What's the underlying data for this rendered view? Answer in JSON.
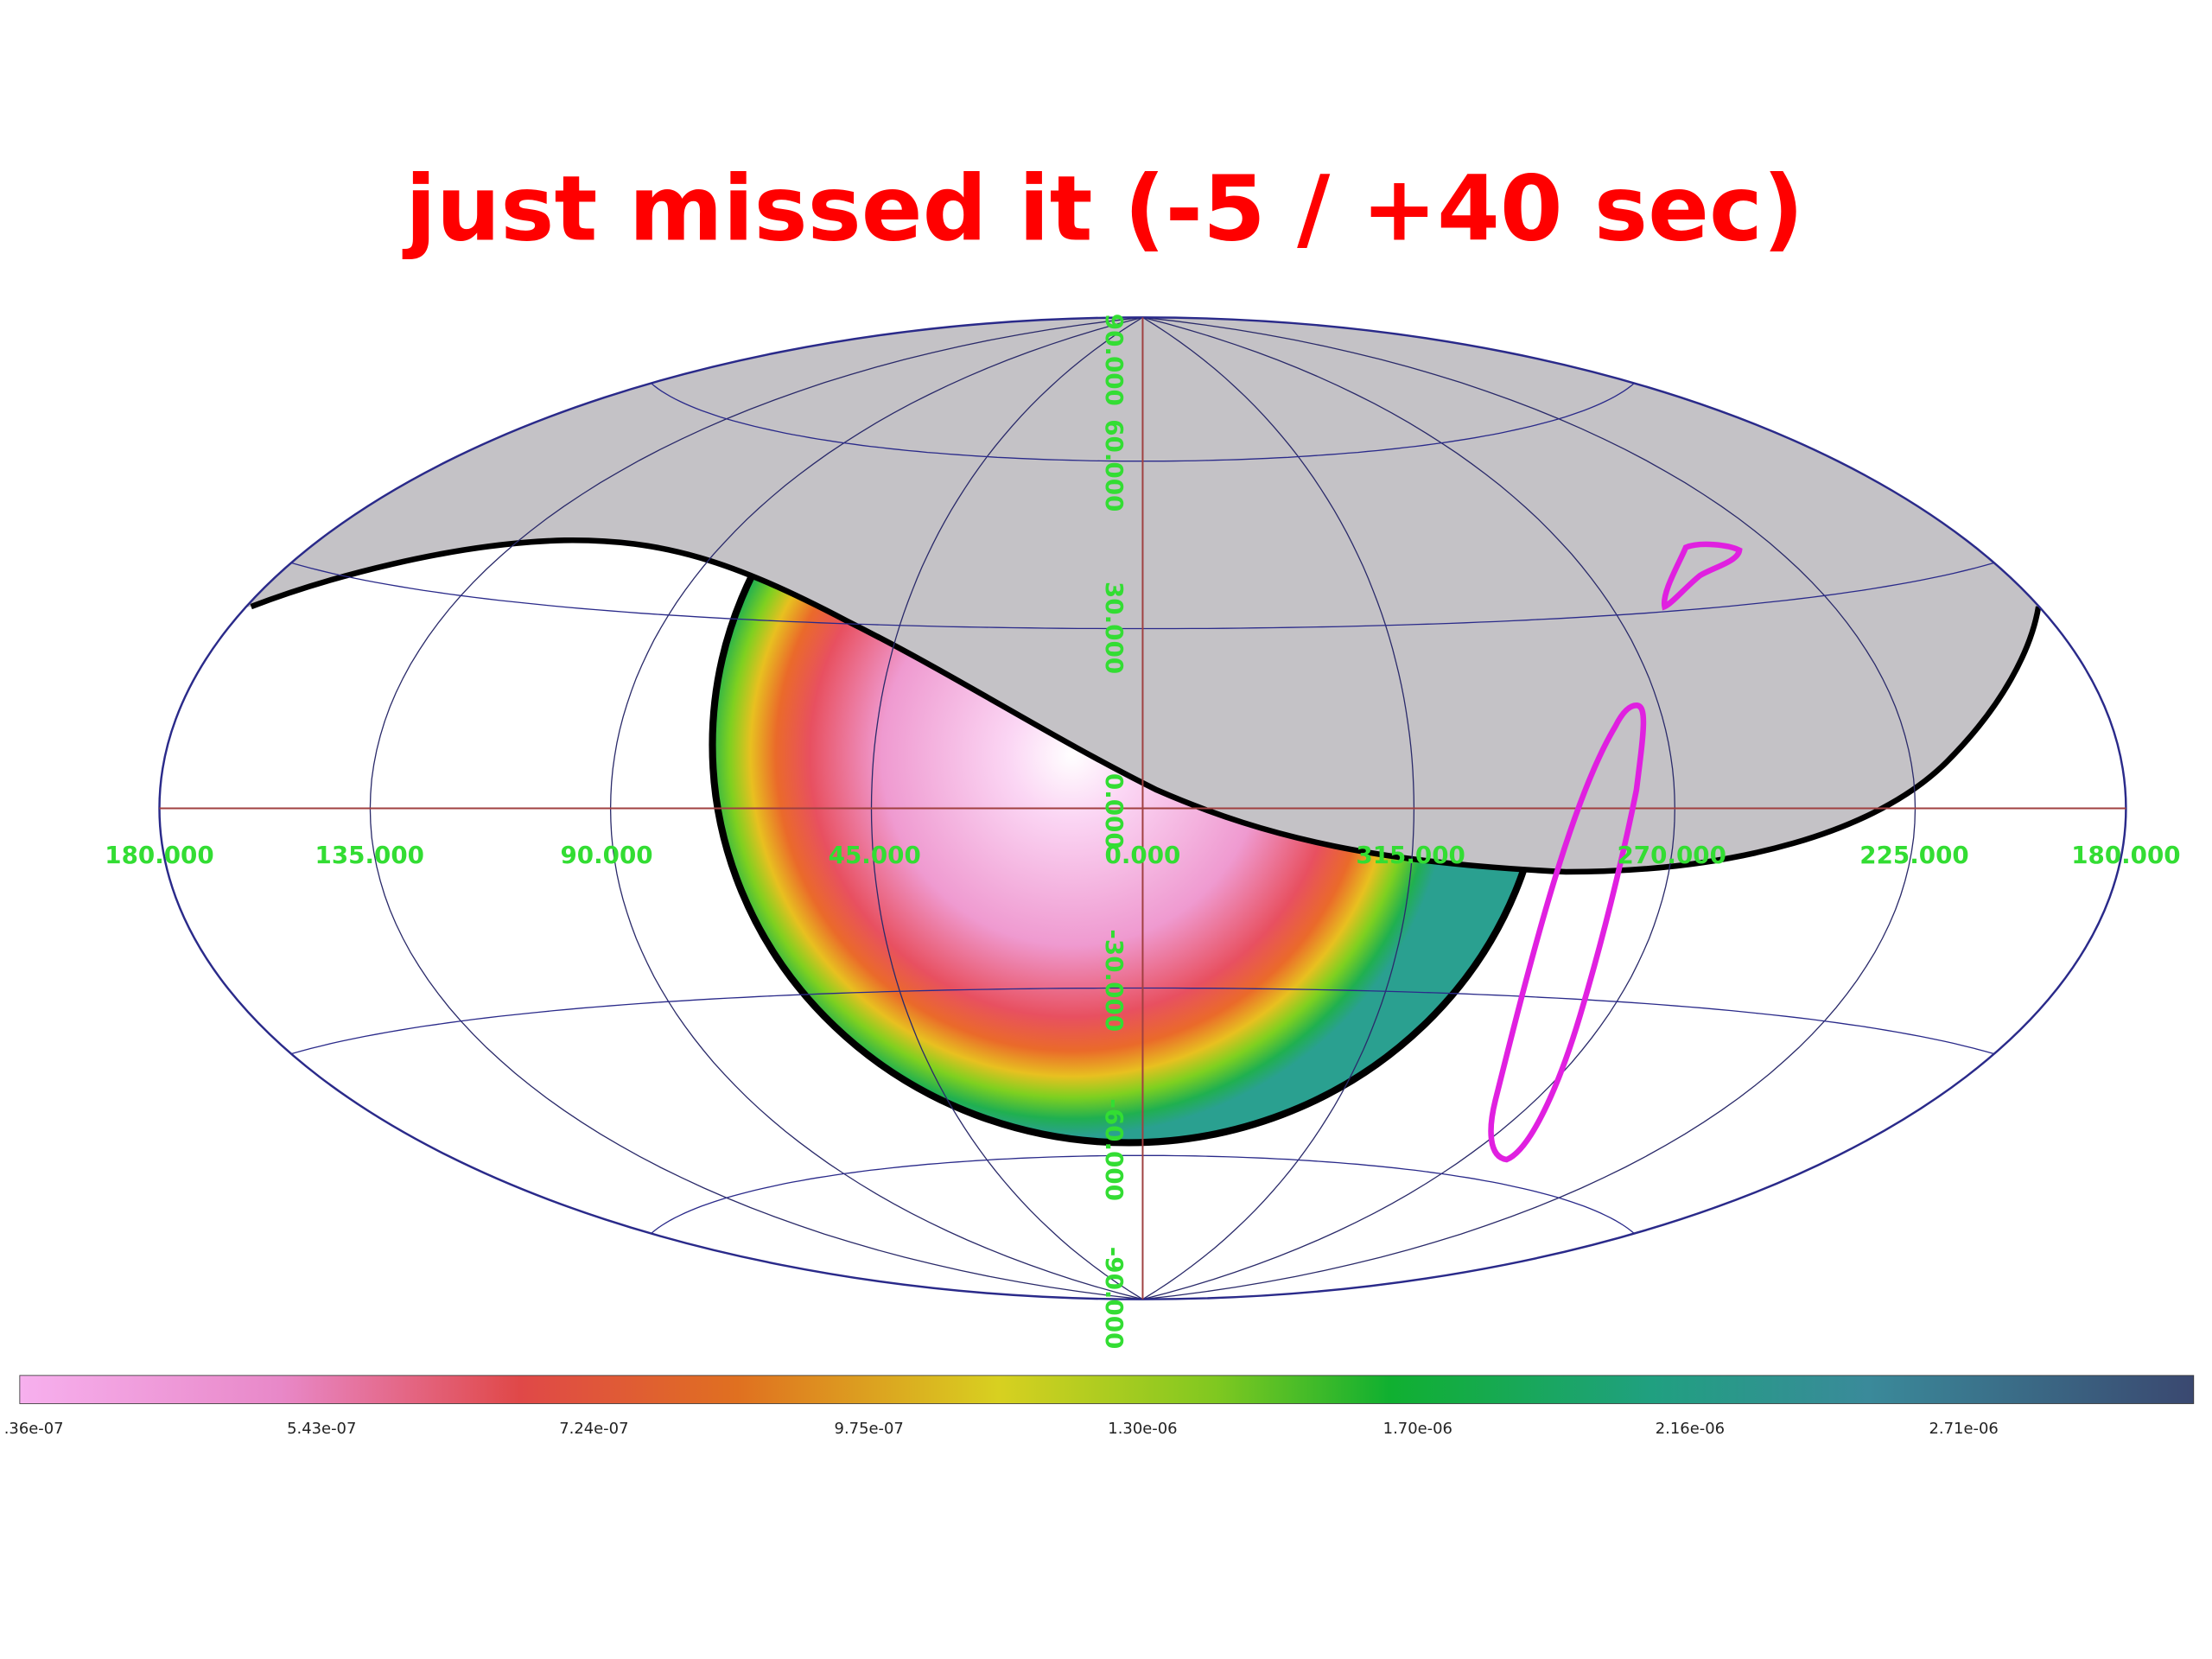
{
  "title": "just missed it  (-5 / +40 sec)",
  "longitude_labels": [
    "180.000",
    "135.000",
    "90.000",
    "45.000",
    "0.000",
    "315.000",
    "270.000",
    "225.000",
    "180.000"
  ],
  "latitude_labels": [
    "90.000",
    "60.000",
    "30.000",
    "0.000",
    "-30.000",
    "-60.000",
    "-90.000"
  ],
  "colorbar_labels": [
    ".36e-07",
    "5.43e-07",
    "7.24e-07",
    "9.75e-07",
    "1.30e-06",
    "1.70e-06",
    "2.16e-06",
    "2.71e-06"
  ]
}
